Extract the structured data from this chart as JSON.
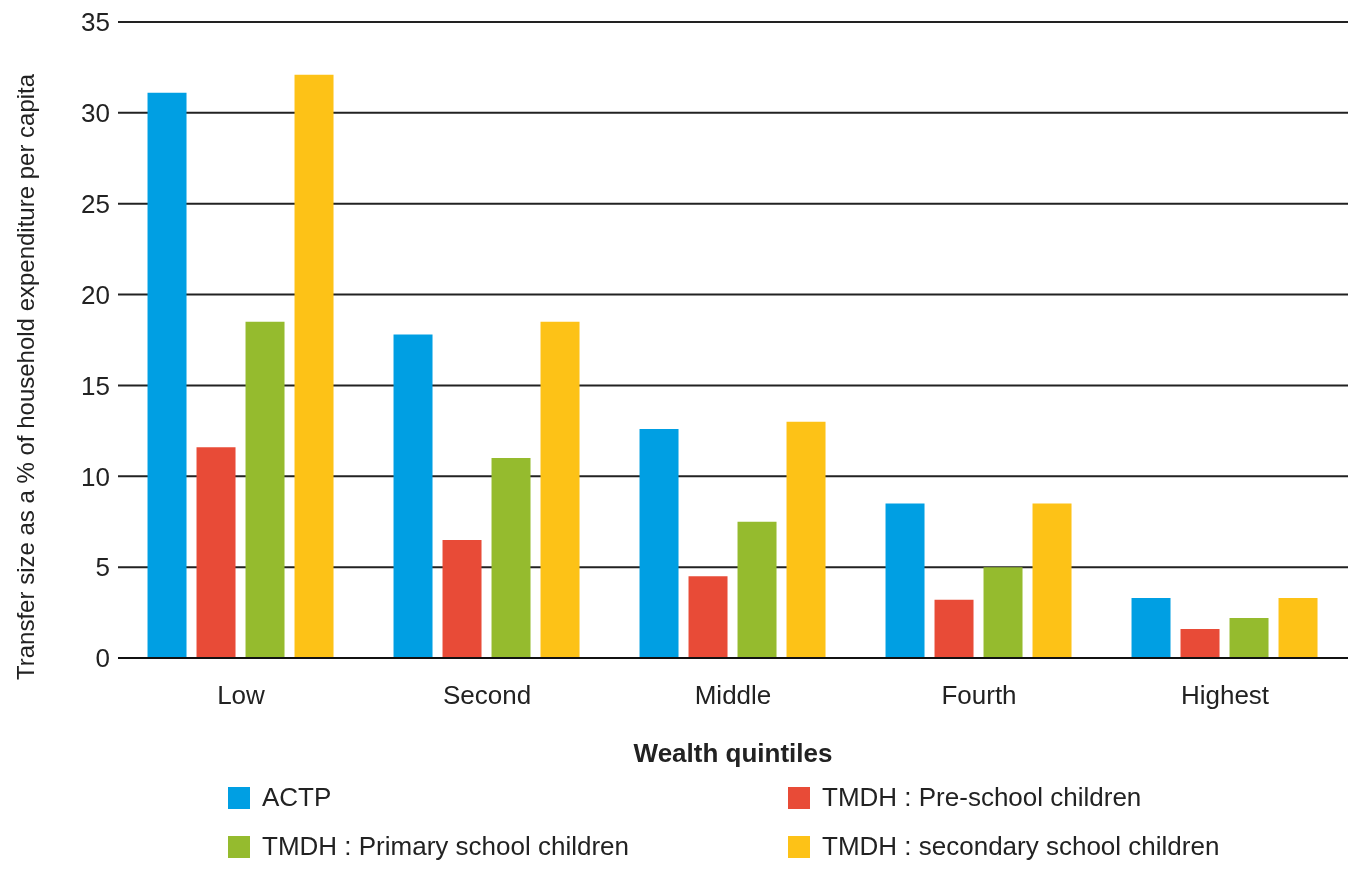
{
  "chart_data": {
    "type": "bar",
    "xlabel": "Wealth quintiles",
    "ylabel": "Transfer size as a % of household expenditure per capita",
    "categories": [
      "Low",
      "Second",
      "Middle",
      "Fourth",
      "Highest"
    ],
    "series": [
      {
        "name": "ACTP",
        "color": "#009fe3",
        "values": [
          31.1,
          17.8,
          12.6,
          8.5,
          3.3
        ]
      },
      {
        "name": "TMDH : Pre-school children",
        "color": "#e84b37",
        "values": [
          11.6,
          6.5,
          4.5,
          3.2,
          1.6
        ]
      },
      {
        "name": "TMDH : Primary school children",
        "color": "#95bb2e",
        "values": [
          18.5,
          11.0,
          7.5,
          5.0,
          2.2
        ]
      },
      {
        "name": "TMDH : secondary school children",
        "color": "#fdc217",
        "values": [
          32.1,
          18.5,
          13.0,
          8.5,
          3.3
        ]
      }
    ],
    "ylim": [
      0,
      35
    ],
    "yticks": [
      0,
      5,
      10,
      15,
      20,
      25,
      30,
      35
    ],
    "grid": "y",
    "legend": "bottom"
  }
}
